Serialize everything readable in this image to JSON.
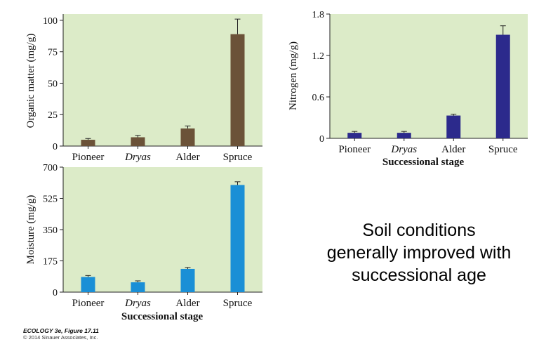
{
  "chart_data": [
    {
      "id": "organic",
      "type": "bar",
      "ylabel": "Organic matter (mg/g)",
      "xlabel": "",
      "ylim": [
        0,
        105
      ],
      "yticks": [
        0,
        25,
        50,
        75,
        100
      ],
      "categories": [
        "Pioneer",
        "Dryas",
        "Alder",
        "Spruce"
      ],
      "italic_categories": [
        "Dryas"
      ],
      "values": [
        5,
        7,
        14,
        89
      ],
      "errors": [
        1,
        1.5,
        2,
        12
      ],
      "color": "#6b5238"
    },
    {
      "id": "nitrogen",
      "type": "bar",
      "ylabel": "Nitrogen (mg/g)",
      "xlabel": "Successional stage",
      "ylim": [
        0,
        1.8
      ],
      "yticks": [
        "0",
        "0.6",
        "1.2",
        "1.8"
      ],
      "categories": [
        "Pioneer",
        "Dryas",
        "Alder",
        "Spruce"
      ],
      "italic_categories": [
        "Dryas"
      ],
      "values": [
        0.08,
        0.08,
        0.33,
        1.5
      ],
      "errors": [
        0.02,
        0.02,
        0.02,
        0.13
      ],
      "color": "#2c2a8c"
    },
    {
      "id": "moisture",
      "type": "bar",
      "ylabel": "Moisture (mg/g)",
      "xlabel": "Successional stage",
      "ylim": [
        0,
        700
      ],
      "yticks": [
        0,
        175,
        350,
        525,
        700
      ],
      "categories": [
        "Pioneer",
        "Dryas",
        "Alder",
        "Spruce"
      ],
      "italic_categories": [
        "Dryas"
      ],
      "values": [
        85,
        55,
        130,
        600
      ],
      "errors": [
        8,
        8,
        8,
        18
      ],
      "color": "#1a8fd6"
    }
  ],
  "colors": {
    "plot_background": "#dcebc8",
    "axis": "#222222"
  },
  "caption": {
    "line1": "Soil conditions",
    "line2": "generally improved with",
    "line3": "successional age"
  },
  "credit": {
    "line1": "ECOLOGY 3e, Figure 17.11",
    "line2": "© 2014 Sinauer Associates, Inc."
  }
}
